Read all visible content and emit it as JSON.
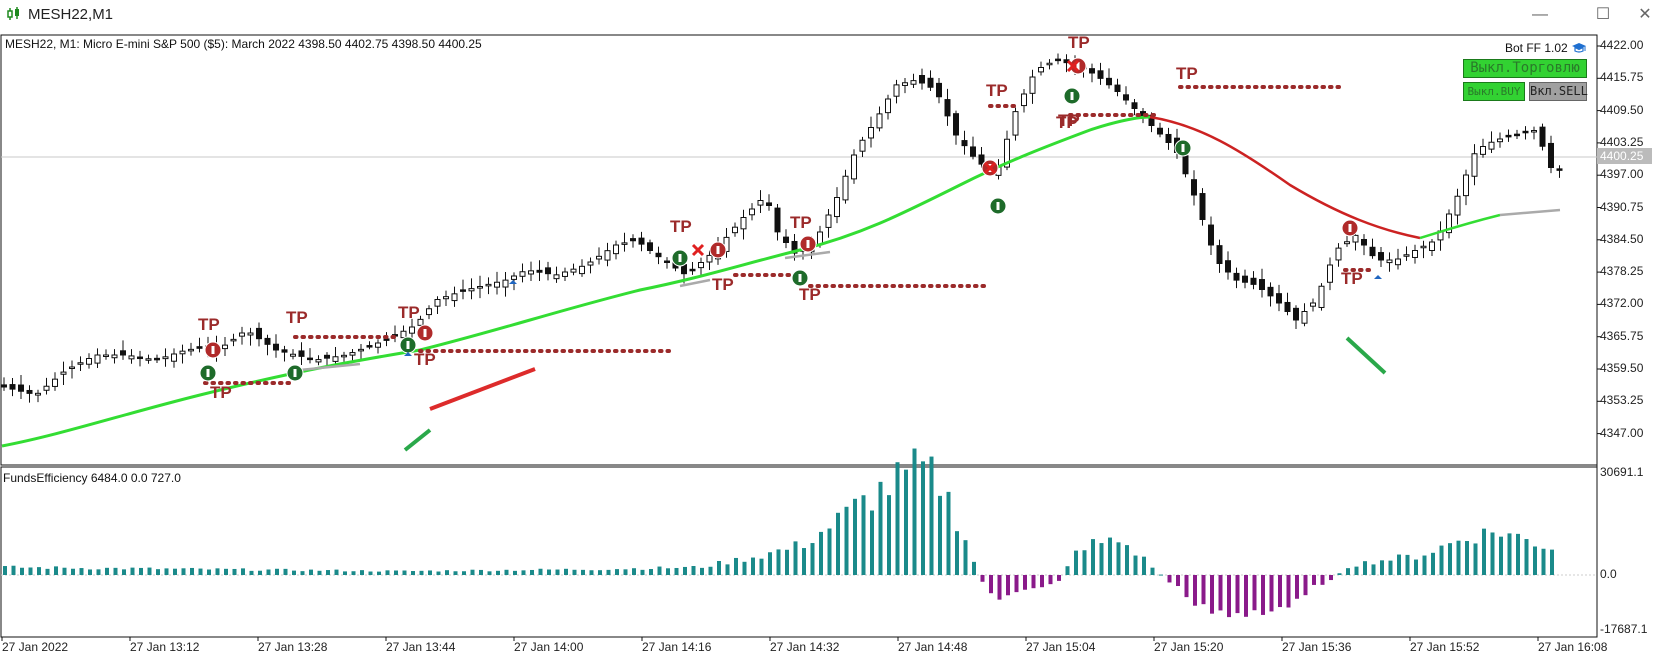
{
  "window": {
    "title": "MESH22,M1"
  },
  "chart": {
    "info": "MESH22, M1:  Micro E-mini S&P 500 ($5): March 2022  4398.50 4402.75 4398.50 4400.25",
    "current_price": "4400.25",
    "price_labels": [
      "4422.00",
      "4415.75",
      "4409.50",
      "4403.25",
      "4397.00",
      "4390.75",
      "4384.50",
      "4378.25",
      "4372.00",
      "4365.75",
      "4359.50",
      "4353.25",
      "4347.00"
    ],
    "tp_label": "TP"
  },
  "bot": {
    "title": "Bot FF 1.02",
    "disable_trading_label": "Выкл.Торговлю",
    "disable_buy_label": "Выкл.BUY",
    "enable_sell_label": "Вкл.SELL"
  },
  "indicator": {
    "info": "FundsEfficiency 6484.0 0.0 727.0",
    "scale_labels": [
      "30691.1",
      "0.0",
      "-17687.1"
    ]
  },
  "time_axis": [
    "27 Jan 2022",
    "27 Jan 13:12",
    "27 Jan 13:28",
    "27 Jan 13:44",
    "27 Jan 14:00",
    "27 Jan 14:16",
    "27 Jan 14:32",
    "27 Jan 14:48",
    "27 Jan 15:04",
    "27 Jan 15:20",
    "27 Jan 15:36",
    "27 Jan 15:52",
    "27 Jan 16:08"
  ],
  "colors": {
    "ma_up": "#33dd33",
    "ma_down": "#cc2222",
    "ma_flat": "#aaaaaa",
    "hist_pos": "#1a8a8a",
    "hist_neg": "#8a1a8a",
    "tp": "#9b2a2a"
  },
  "icons": {
    "app": "candlestick-icon",
    "minimize": "minimize-icon",
    "maximize": "maximize-icon",
    "close": "close-icon",
    "hat": "graduation-cap-icon"
  }
}
